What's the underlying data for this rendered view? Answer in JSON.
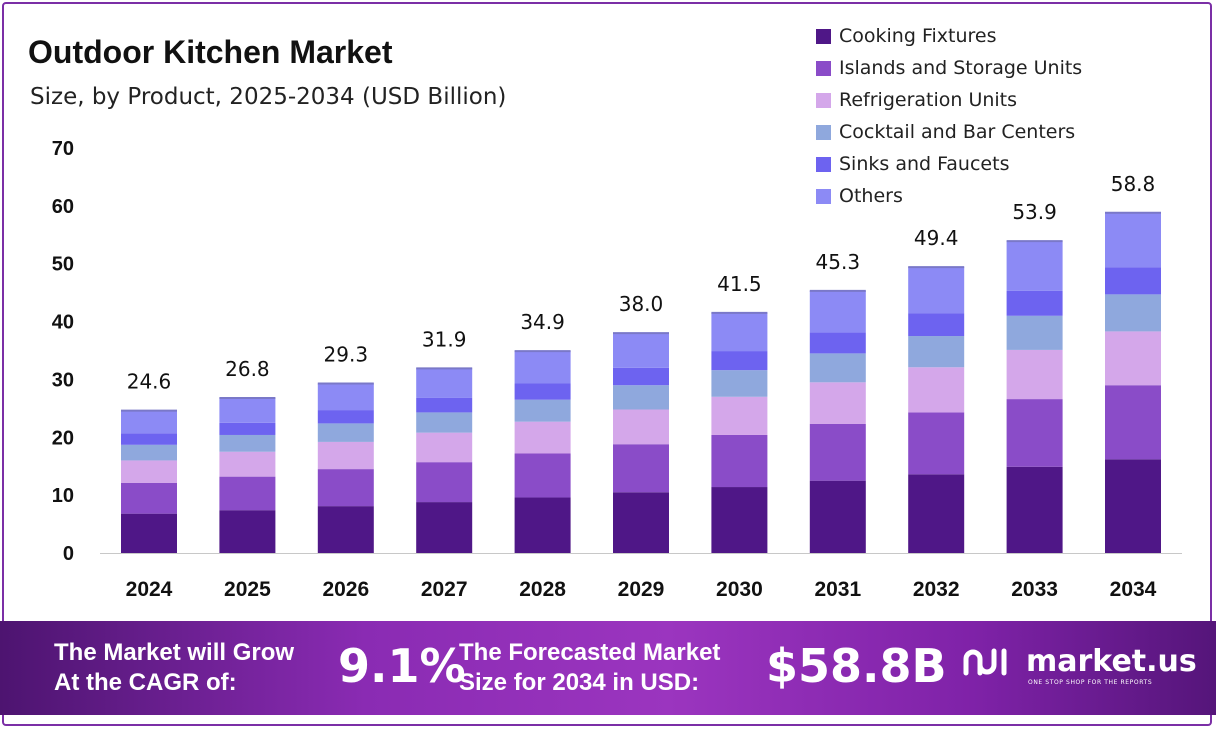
{
  "header": {
    "title": "Outdoor Kitchen Market",
    "subtitle": "Size, by Product, 2025-2034 (USD Billion)"
  },
  "chart_data": {
    "type": "bar",
    "stacked": true,
    "title": "Outdoor Kitchen Market",
    "subtitle": "Size, by Product, 2025-2034 (USD Billion)",
    "categories": [
      "2024",
      "2025",
      "2026",
      "2027",
      "2028",
      "2029",
      "2030",
      "2031",
      "2032",
      "2033",
      "2034"
    ],
    "totals": [
      24.6,
      26.8,
      29.3,
      31.9,
      34.9,
      38.0,
      41.5,
      45.3,
      49.4,
      53.9,
      58.8
    ],
    "total_labels": [
      "24.6",
      "26.8",
      "29.3",
      "31.9",
      "34.9",
      "38.0",
      "41.5",
      "45.3",
      "49.4",
      "53.9",
      "58.8"
    ],
    "series": [
      {
        "name": "Cooking Fixtures",
        "color": "#4f1787",
        "values": [
          6.8,
          7.4,
          8.1,
          8.8,
          9.6,
          10.5,
          11.4,
          12.5,
          13.6,
          14.9,
          16.2
        ]
      },
      {
        "name": "Islands and Storage Units",
        "color": "#8a4cc8",
        "values": [
          5.3,
          5.8,
          6.4,
          6.9,
          7.6,
          8.3,
          9.0,
          9.8,
          10.7,
          11.7,
          12.8
        ]
      },
      {
        "name": "Refrigeration Units",
        "color": "#d4a7ea",
        "values": [
          3.9,
          4.3,
          4.7,
          5.1,
          5.5,
          6.0,
          6.6,
          7.2,
          7.8,
          8.5,
          9.3
        ]
      },
      {
        "name": "Cocktail and Bar Centers",
        "color": "#8fa8dd",
        "values": [
          2.7,
          2.9,
          3.2,
          3.5,
          3.8,
          4.2,
          4.6,
          5.0,
          5.4,
          5.9,
          6.4
        ]
      },
      {
        "name": "Sinks and Faucets",
        "color": "#6d63f0",
        "values": [
          2.0,
          2.1,
          2.3,
          2.5,
          2.8,
          3.0,
          3.3,
          3.6,
          3.9,
          4.3,
          4.7
        ]
      },
      {
        "name": "Others",
        "color": "#8c8af5",
        "values": [
          3.9,
          4.3,
          4.6,
          5.1,
          5.6,
          6.0,
          6.6,
          7.2,
          8.0,
          8.6,
          9.4
        ]
      }
    ],
    "yticks": [
      "0",
      "10",
      "20",
      "30",
      "40",
      "50",
      "60",
      "70"
    ],
    "ylim": [
      0,
      70
    ],
    "xlabel": "",
    "ylabel": "",
    "grid": false,
    "legend_position": "top-right"
  },
  "banner": {
    "cagr_text_line1": "The Market will Grow",
    "cagr_text_line2": "At the CAGR of:",
    "cagr_value": "9.1%",
    "forecast_text_line1": "The Forecasted Market",
    "forecast_text_line2": "Size for 2034 in USD:",
    "forecast_value": "$58.8B",
    "brand_name": "market.us",
    "brand_tagline": "ONE STOP SHOP FOR THE REPORTS",
    "background_color": "#8a2bb3"
  }
}
